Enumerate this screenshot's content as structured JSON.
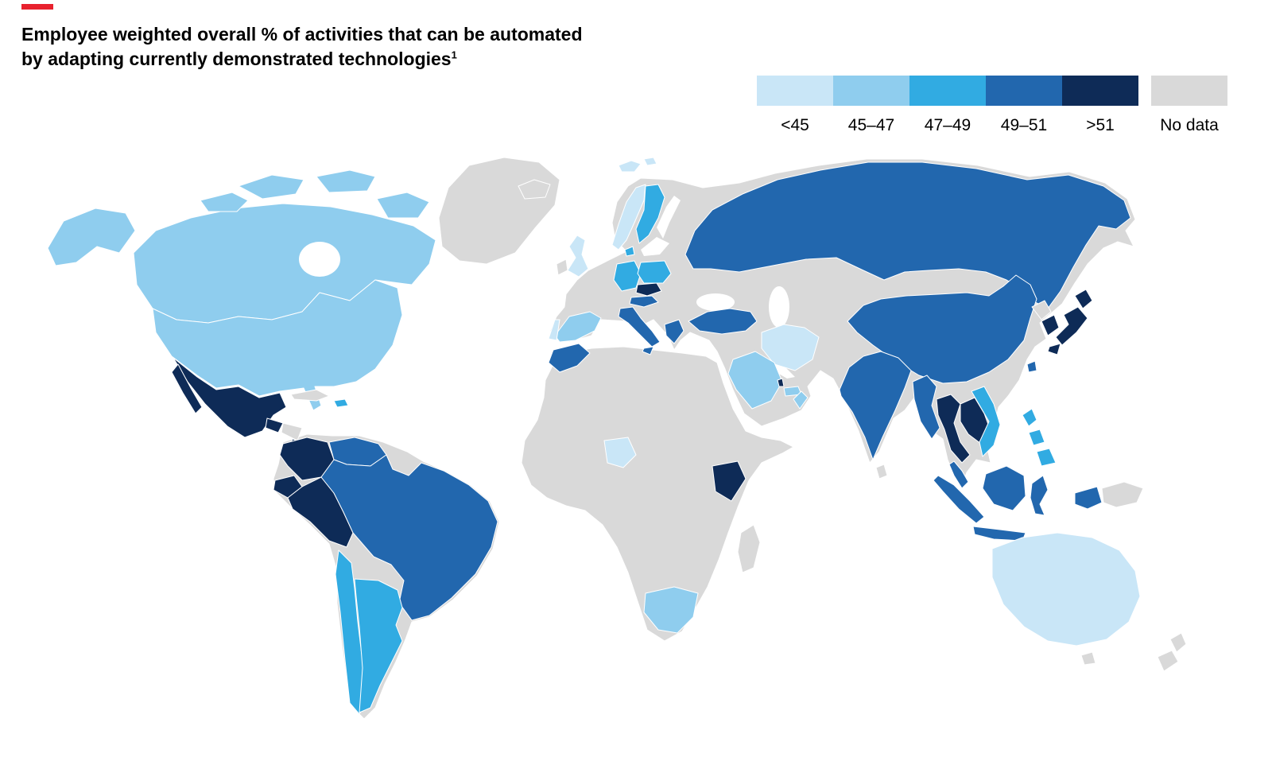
{
  "header": {
    "accent_bar_color": "#e8212e",
    "title_line1": "Employee weighted overall % of activities that can be automated",
    "title_line2": "by adapting currently demonstrated technologies",
    "title_superscript": "1"
  },
  "legend": {
    "buckets": [
      {
        "key": "lt45",
        "label": "<45",
        "color": "#c9e6f7"
      },
      {
        "key": "b45_47",
        "label": "45–47",
        "color": "#8fcdee"
      },
      {
        "key": "b47_49",
        "label": "47–49",
        "color": "#31abe2"
      },
      {
        "key": "b49_51",
        "label": "49–51",
        "color": "#2267ae"
      },
      {
        "key": "gt51",
        "label": ">51",
        "color": "#0e2b57"
      },
      {
        "key": "no_data",
        "label": "No data",
        "color": "#d9d9d9"
      }
    ]
  },
  "map": {
    "ocean_color": "#ffffff",
    "countries": {
      "greenland": "no_data",
      "iceland": "no_data",
      "canada": "b45_47",
      "usa": "b45_47",
      "mexico": "gt51",
      "guatemala": "gt51",
      "honduras-nicaragua": "no_data",
      "costa-rica-panama": "gt51",
      "cuba": "no_data",
      "dominican-republic": "b47_49",
      "south-america-base": "no_data",
      "colombia": "gt51",
      "venezuela": "b49_51",
      "ecuador": "gt51",
      "peru": "gt51",
      "brazil": "b49_51",
      "chile": "b47_49",
      "argentina": "b47_49",
      "eurasia-base": "no_data",
      "africa-base": "no_data",
      "svalbard": "lt45",
      "norway": "lt45",
      "sweden": "b47_49",
      "denmark": "b47_49",
      "uk": "lt45",
      "ireland": "no_data",
      "spain": "b45_47",
      "portugal": "lt45",
      "germany": "b47_49",
      "poland": "b47_49",
      "czech-republic": "gt51",
      "austria": "b49_51",
      "italy": "b49_51",
      "greece": "b49_51",
      "russia": "b49_51",
      "turkey": "b49_51",
      "morocco": "b49_51",
      "nigeria": "lt45",
      "kenya": "gt51",
      "south-africa": "b45_47",
      "madagascar": "no_data",
      "iran": "lt45",
      "saudi-arabia": "b45_47",
      "qatar": "gt51",
      "uae": "b45_47",
      "oman": "b45_47",
      "china": "b49_51",
      "india": "b49_51",
      "sri-lanka": "no_data",
      "myanmar": "b49_51",
      "thailand": "gt51",
      "laos-cambodia": "gt51",
      "vietnam": "b47_49",
      "malaysia": "b49_51",
      "indonesia": "b49_51",
      "papua-new-guinea": "no_data",
      "philippines": "b47_49",
      "north-korea": "no_data",
      "south-korea": "gt51",
      "japan": "gt51",
      "taiwan": "b49_51",
      "australia": "lt45",
      "tasmania": "no_data",
      "new-zealand": "no_data"
    }
  }
}
